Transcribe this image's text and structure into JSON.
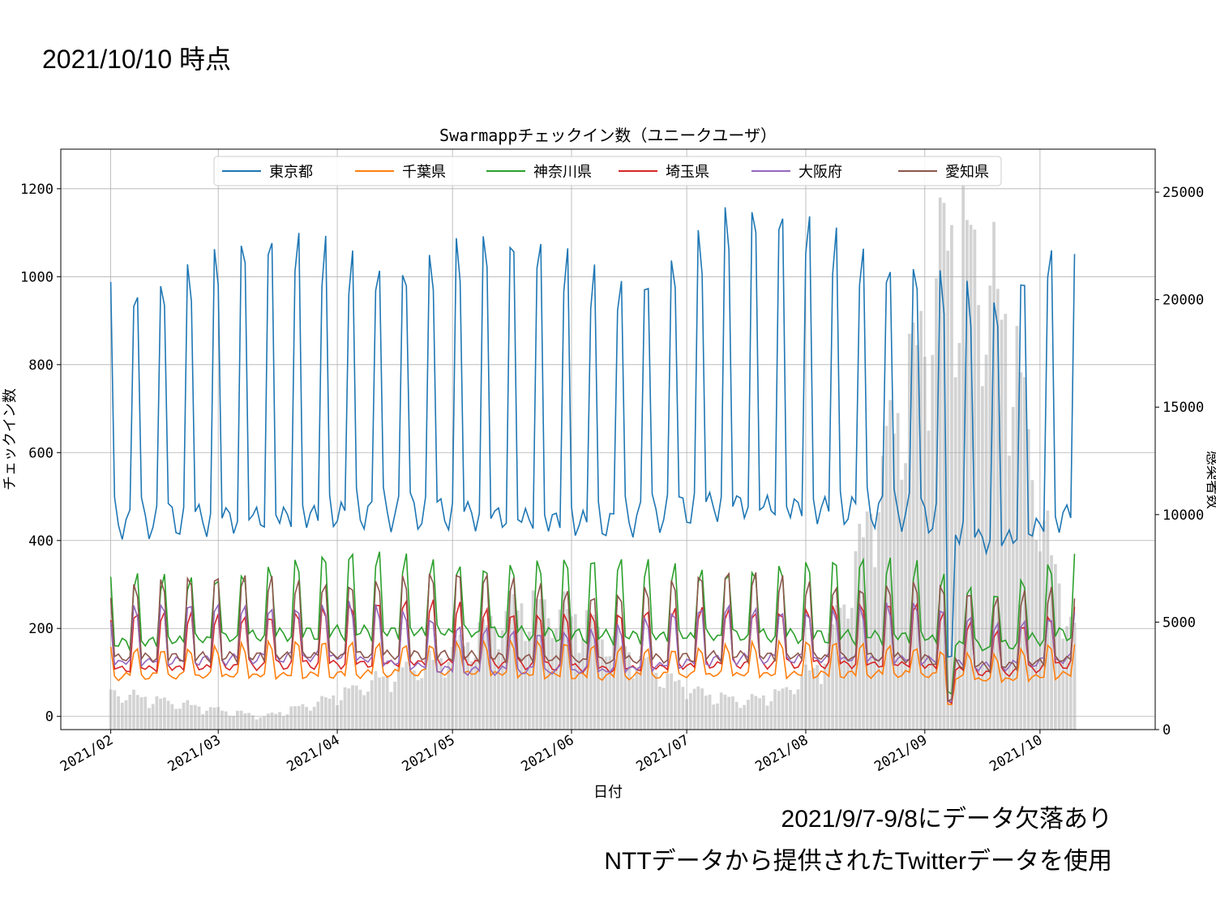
{
  "slide": {
    "header": "2021/10/10 時点",
    "notes": [
      "2021/9/7-9/8にデータ欠落あり",
      "NTTデータから提供されたTwitterデータを使用"
    ]
  },
  "chart_data": {
    "type": "line",
    "title": "Swarmappチェックイン数（ユニークユーザ）",
    "xlabel": "日付",
    "ylabel": "チェックイン数",
    "y2label": "感染者数",
    "x_start": "2021-02-01",
    "x_end": "2021-10-10",
    "xlim": [
      "2021-01-19",
      "2021-10-31"
    ],
    "ylim": [
      -30,
      1290
    ],
    "y2lim": [
      0,
      27000
    ],
    "x_ticks": [
      "2021/02",
      "2021/03",
      "2021/04",
      "2021/05",
      "2021/06",
      "2021/07",
      "2021/08",
      "2021/09",
      "2021/10"
    ],
    "x_tick_dates": [
      "2021-02-01",
      "2021-03-01",
      "2021-04-01",
      "2021-05-01",
      "2021-06-01",
      "2021-07-01",
      "2021-08-01",
      "2021-09-01",
      "2021-10-01"
    ],
    "y_ticks": [
      0,
      200,
      400,
      600,
      800,
      1000,
      1200
    ],
    "y2_ticks": [
      0,
      5000,
      10000,
      15000,
      20000,
      25000
    ],
    "grid": true,
    "legend_position": "top-center",
    "series": [
      {
        "name": "東京都",
        "color": "#1f77b4",
        "weekday": 470,
        "weekend": 1000,
        "trend": [
          [
            0,
            0.95
          ],
          [
            60,
            1.0
          ],
          [
            90,
            1.0
          ],
          [
            130,
            0.95
          ],
          [
            160,
            1.05
          ],
          [
            210,
            1.0
          ],
          [
            230,
            0.85
          ],
          [
            250,
            1.0
          ],
          [
            251,
            1.05
          ]
        ]
      },
      {
        "name": "千葉県",
        "color": "#ff7f0e",
        "weekday": 95,
        "weekend": 160,
        "trend": [
          [
            0,
            0.95
          ],
          [
            60,
            1.0
          ],
          [
            90,
            1.05
          ],
          [
            130,
            0.95
          ],
          [
            160,
            1.0
          ],
          [
            210,
            1.0
          ],
          [
            230,
            0.85
          ],
          [
            250,
            1.0
          ],
          [
            251,
            1.0
          ]
        ]
      },
      {
        "name": "神奈川県",
        "color": "#2ca02c",
        "weekday": 180,
        "weekend": 340,
        "trend": [
          [
            0,
            0.9
          ],
          [
            60,
            1.05
          ],
          [
            90,
            1.05
          ],
          [
            130,
            1.0
          ],
          [
            160,
            1.0
          ],
          [
            210,
            1.0
          ],
          [
            230,
            0.85
          ],
          [
            250,
            1.05
          ],
          [
            251,
            1.05
          ]
        ]
      },
      {
        "name": "埼玉県",
        "color": "#d62728",
        "weekday": 115,
        "weekend": 220,
        "trend": [
          [
            0,
            0.95
          ],
          [
            60,
            1.05
          ],
          [
            90,
            1.1
          ],
          [
            130,
            0.95
          ],
          [
            160,
            1.05
          ],
          [
            210,
            1.05
          ],
          [
            230,
            0.85
          ],
          [
            250,
            1.05
          ],
          [
            251,
            1.05
          ]
        ]
      },
      {
        "name": "大阪府",
        "color": "#9467bd",
        "weekday": 130,
        "weekend": 240,
        "trend": [
          [
            0,
            0.95
          ],
          [
            60,
            1.05
          ],
          [
            90,
            0.8
          ],
          [
            130,
            0.8
          ],
          [
            160,
            1.0
          ],
          [
            210,
            1.0
          ],
          [
            230,
            0.85
          ],
          [
            250,
            1.0
          ],
          [
            251,
            1.0
          ]
        ]
      },
      {
        "name": "愛知県",
        "color": "#8c564b",
        "weekday": 130,
        "weekend": 300,
        "trend": [
          [
            0,
            1.0
          ],
          [
            60,
            1.05
          ],
          [
            90,
            1.05
          ],
          [
            130,
            0.95
          ],
          [
            160,
            1.05
          ],
          [
            210,
            1.0
          ],
          [
            230,
            0.85
          ],
          [
            250,
            1.0
          ],
          [
            251,
            1.0
          ]
        ]
      }
    ],
    "dropout_days": [
      218,
      219
    ],
    "bars": {
      "name": "感染者数",
      "color": "#d3d3d3",
      "trend": [
        [
          0,
          1700
        ],
        [
          14,
          1300
        ],
        [
          28,
          900
        ],
        [
          40,
          600
        ],
        [
          55,
          1300
        ],
        [
          70,
          2300
        ],
        [
          85,
          3200
        ],
        [
          95,
          4200
        ],
        [
          105,
          5600
        ],
        [
          115,
          5500
        ],
        [
          125,
          4800
        ],
        [
          135,
          3500
        ],
        [
          145,
          2300
        ],
        [
          155,
          1600
        ],
        [
          165,
          1300
        ],
        [
          175,
          1700
        ],
        [
          185,
          3000
        ],
        [
          195,
          8000
        ],
        [
          205,
          14500
        ],
        [
          212,
          18000
        ],
        [
          218,
          22500
        ],
        [
          226,
          21000
        ],
        [
          235,
          17500
        ],
        [
          243,
          9000
        ],
        [
          250,
          4800
        ],
        [
          258,
          2500
        ],
        [
          265,
          1000
        ],
        [
          272,
          500
        ]
      ]
    }
  }
}
